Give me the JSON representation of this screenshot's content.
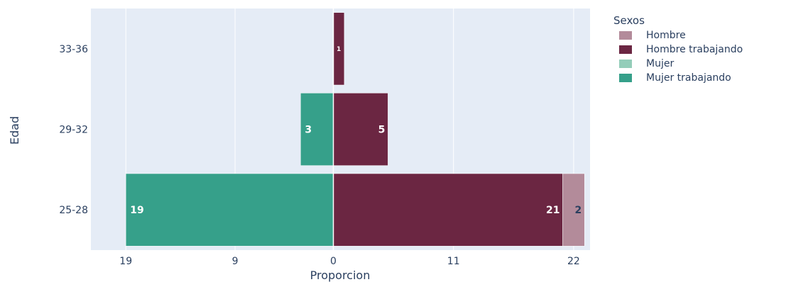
{
  "chart_data": {
    "type": "bar",
    "orientation": "horizontal",
    "barmode": "relative",
    "xlabel": "Proporcion",
    "ylabel": "Edad",
    "categories": [
      "25-28",
      "29-32",
      "33-36"
    ],
    "xlim": [
      -22.2,
      23.5
    ],
    "x_tick_values": [
      -19,
      -9,
      0,
      11,
      22
    ],
    "x_tick_labels": [
      "19",
      "9",
      "0",
      "11",
      "22"
    ],
    "grid": true,
    "legend": {
      "title": "Sexos",
      "placement": "right"
    },
    "series": [
      {
        "name": "Hombre",
        "color": "#b38b9a",
        "values": [
          2,
          0,
          0
        ],
        "labels": [
          "2",
          "",
          ""
        ]
      },
      {
        "name": "Hombre trabajando",
        "color": "#6b2642",
        "values": [
          21,
          5,
          1
        ],
        "labels": [
          "21",
          "5",
          "1"
        ]
      },
      {
        "name": "Mujer",
        "color": "#94cdb9",
        "values": [
          0,
          0,
          0
        ],
        "labels": [
          "",
          "",
          ""
        ]
      },
      {
        "name": "Mujer trabajando",
        "color": "#36a08a",
        "values": [
          -19,
          -3,
          0
        ],
        "labels": [
          "19",
          "3",
          ""
        ]
      }
    ],
    "stack_order": [
      "Hombre trabajando",
      "Hombre",
      "Mujer trabajando",
      "Mujer"
    ]
  }
}
